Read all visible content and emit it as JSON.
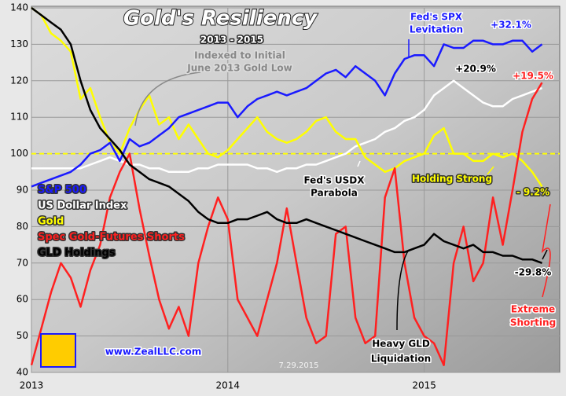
{
  "chart_data": {
    "type": "line",
    "title": "Gold's Resiliency",
    "subtitle": "2013 - 2015",
    "annotations": [
      {
        "lines": [
          "Indexed to Initial",
          "June 2013 Gold Low"
        ]
      },
      {
        "lines": [
          "Fed's SPX",
          "Levitation"
        ]
      },
      {
        "lines": [
          "+32.1%"
        ]
      },
      {
        "lines": [
          "+20.9%"
        ]
      },
      {
        "lines": [
          "+19.5%"
        ]
      },
      {
        "lines": [
          "Fed's USDX",
          "Parabola"
        ]
      },
      {
        "lines": [
          "Holding Strong"
        ]
      },
      {
        "lines": [
          "- 9.2%"
        ]
      },
      {
        "lines": [
          "-29.8%"
        ]
      },
      {
        "lines": [
          "Extreme",
          "Shorting"
        ]
      },
      {
        "lines": [
          "Heavy GLD",
          "Liquidation"
        ]
      },
      {
        "lines": [
          "www.ZealLLC.com"
        ]
      },
      {
        "lines": [
          "7.29.2015"
        ]
      }
    ],
    "x": [
      2013.0,
      2013.05,
      2013.1,
      2013.15,
      2013.2,
      2013.25,
      2013.3,
      2013.35,
      2013.4,
      2013.45,
      2013.5,
      2013.55,
      2013.6,
      2013.65,
      2013.7,
      2013.75,
      2013.8,
      2013.85,
      2013.9,
      2013.95,
      2014.0,
      2014.05,
      2014.1,
      2014.15,
      2014.2,
      2014.25,
      2014.3,
      2014.35,
      2014.4,
      2014.45,
      2014.5,
      2014.55,
      2014.6,
      2014.65,
      2014.7,
      2014.75,
      2014.8,
      2014.85,
      2014.9,
      2014.95,
      2015.0,
      2015.05,
      2015.1,
      2015.15,
      2015.2,
      2015.25,
      2015.3,
      2015.35,
      2015.4,
      2015.45,
      2015.5,
      2015.55,
      2015.6
    ],
    "series": [
      {
        "name": "US Dollar Index",
        "color": "#ffffff",
        "values": [
          96,
          96,
          96,
          96,
          96,
          96,
          97,
          98,
          99,
          98,
          97,
          97,
          96,
          96,
          95,
          95,
          95,
          96,
          96,
          97,
          97,
          97,
          97,
          96,
          96,
          95,
          96,
          96,
          97,
          97,
          98,
          99,
          100,
          102,
          103,
          104,
          106,
          107,
          109,
          110,
          112,
          116,
          118,
          120,
          118,
          116,
          114,
          113,
          113,
          115,
          116,
          117,
          118
        ]
      },
      {
        "name": "Gold",
        "color": "#ffff00",
        "values": [
          140,
          138,
          133,
          131,
          128,
          115,
          118,
          110,
          103,
          100,
          107,
          112,
          116,
          108,
          110,
          104,
          108,
          104,
          100,
          99,
          101,
          104,
          107,
          110,
          106,
          104,
          103,
          104,
          106,
          109,
          110,
          106,
          104,
          104,
          99,
          97,
          95,
          96,
          98,
          99,
          100,
          105,
          107,
          100,
          100,
          98,
          98,
          100,
          99,
          100,
          98,
          95,
          91
        ]
      },
      {
        "name": "S&P 500",
        "color": "#1a1aff",
        "values": [
          91,
          92,
          93,
          94,
          95,
          97,
          100,
          101,
          103,
          98,
          104,
          102,
          103,
          105,
          107,
          110,
          111,
          112,
          113,
          114,
          114,
          110,
          113,
          115,
          116,
          117,
          116,
          117,
          118,
          120,
          122,
          123,
          121,
          124,
          122,
          120,
          116,
          122,
          126,
          127,
          127,
          124,
          130,
          129,
          129,
          131,
          131,
          130,
          130,
          131,
          131,
          128,
          130
        ]
      },
      {
        "name": "Spec Gold-Futures Shorts",
        "color": "#ff2020",
        "values": [
          42,
          52,
          62,
          70,
          66,
          58,
          68,
          75,
          88,
          95,
          100,
          85,
          72,
          60,
          52,
          58,
          50,
          70,
          80,
          88,
          82,
          60,
          55,
          50,
          60,
          70,
          85,
          70,
          55,
          48,
          50,
          78,
          80,
          55,
          48,
          50,
          88,
          96,
          70,
          55,
          50,
          48,
          42,
          70,
          80,
          65,
          70,
          88,
          75,
          90,
          106,
          115,
          119.5
        ]
      },
      {
        "name": "GLD Holdings",
        "color": "#000000",
        "values": [
          140,
          138,
          136,
          134,
          130,
          120,
          112,
          107,
          104,
          101,
          97,
          95,
          93,
          92,
          91,
          89,
          87,
          84,
          82,
          81,
          81,
          82,
          82,
          83,
          84,
          82,
          81,
          81,
          82,
          81,
          80,
          79,
          78,
          77,
          76,
          75,
          74,
          73,
          73,
          74,
          75,
          78,
          76,
          75,
          74,
          75,
          73,
          73,
          72,
          72,
          71,
          71,
          70
        ]
      }
    ],
    "legend_order": [
      2,
      0,
      1,
      3,
      4
    ],
    "reference_line": {
      "value": 100,
      "color": "#ffff00"
    },
    "xlim": [
      2013,
      2015.69
    ],
    "xticks": [
      2013,
      2014,
      2015
    ],
    "ylim": [
      40,
      140
    ],
    "yticks": [
      40,
      50,
      60,
      70,
      80,
      90,
      100,
      110,
      120,
      130,
      140
    ],
    "grid": true
  }
}
